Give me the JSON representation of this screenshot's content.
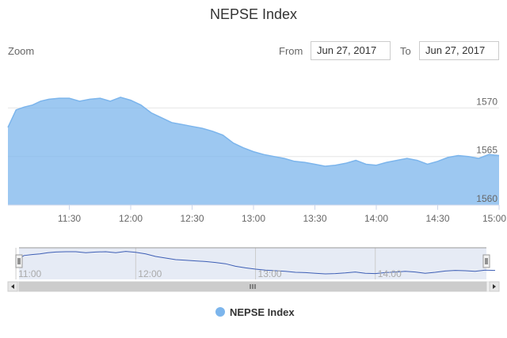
{
  "chart_data": {
    "type": "area",
    "title": "NEPSE Index",
    "date": "Jun 27, 2017",
    "x_range": [
      "11:00",
      "15:00"
    ],
    "ylim": [
      1560,
      1571.5
    ],
    "y_ticks": [
      1560,
      1565,
      1570
    ],
    "x_ticks": [
      "11:30",
      "12:00",
      "12:30",
      "13:00",
      "13:30",
      "14:00",
      "14:30",
      "15:00"
    ],
    "navigator_ticks": [
      "11:00",
      "12:00",
      "13:00",
      "14:00"
    ],
    "legend_position": "bottom-center",
    "grid": true,
    "series": [
      {
        "name": "NEPSE Index",
        "color": "#7cb5ec",
        "points": [
          [
            "11:00",
            1568.0
          ],
          [
            "11:04",
            1569.8
          ],
          [
            "11:08",
            1570.1
          ],
          [
            "11:12",
            1570.3
          ],
          [
            "11:16",
            1570.7
          ],
          [
            "11:20",
            1570.9
          ],
          [
            "11:25",
            1571.0
          ],
          [
            "11:30",
            1571.0
          ],
          [
            "11:35",
            1570.7
          ],
          [
            "11:40",
            1570.9
          ],
          [
            "11:45",
            1571.0
          ],
          [
            "11:50",
            1570.7
          ],
          [
            "11:55",
            1571.1
          ],
          [
            "12:00",
            1570.8
          ],
          [
            "12:05",
            1570.3
          ],
          [
            "12:10",
            1569.5
          ],
          [
            "12:15",
            1569.0
          ],
          [
            "12:20",
            1568.5
          ],
          [
            "12:25",
            1568.3
          ],
          [
            "12:30",
            1568.1
          ],
          [
            "12:35",
            1567.9
          ],
          [
            "12:40",
            1567.6
          ],
          [
            "12:45",
            1567.2
          ],
          [
            "12:50",
            1566.4
          ],
          [
            "12:55",
            1565.9
          ],
          [
            "13:00",
            1565.5
          ],
          [
            "13:05",
            1565.2
          ],
          [
            "13:10",
            1565.0
          ],
          [
            "13:15",
            1564.8
          ],
          [
            "13:20",
            1564.5
          ],
          [
            "13:25",
            1564.4
          ],
          [
            "13:30",
            1564.2
          ],
          [
            "13:35",
            1564.0
          ],
          [
            "13:40",
            1564.1
          ],
          [
            "13:45",
            1564.3
          ],
          [
            "13:50",
            1564.6
          ],
          [
            "13:55",
            1564.2
          ],
          [
            "14:00",
            1564.1
          ],
          [
            "14:05",
            1564.4
          ],
          [
            "14:10",
            1564.6
          ],
          [
            "14:15",
            1564.8
          ],
          [
            "14:20",
            1564.6
          ],
          [
            "14:25",
            1564.2
          ],
          [
            "14:30",
            1564.5
          ],
          [
            "14:35",
            1564.9
          ],
          [
            "14:40",
            1565.1
          ],
          [
            "14:45",
            1565.0
          ],
          [
            "14:50",
            1564.8
          ],
          [
            "14:55",
            1565.2
          ],
          [
            "15:00",
            1565.1
          ]
        ]
      }
    ]
  },
  "range_selector": {
    "zoom_label": "Zoom",
    "from_label": "From",
    "to_label": "To",
    "from_value": "Jun 27, 2017",
    "to_value": "Jun 27, 2017"
  },
  "colors": {
    "series": "#7cb5ec",
    "series_line": "#7cb5ec",
    "navigator_mask": "#e6ebf5",
    "navigator_line": "#3d5eb5",
    "grid": "#e6e6e6",
    "scrollbar": "#e6e6e6"
  }
}
